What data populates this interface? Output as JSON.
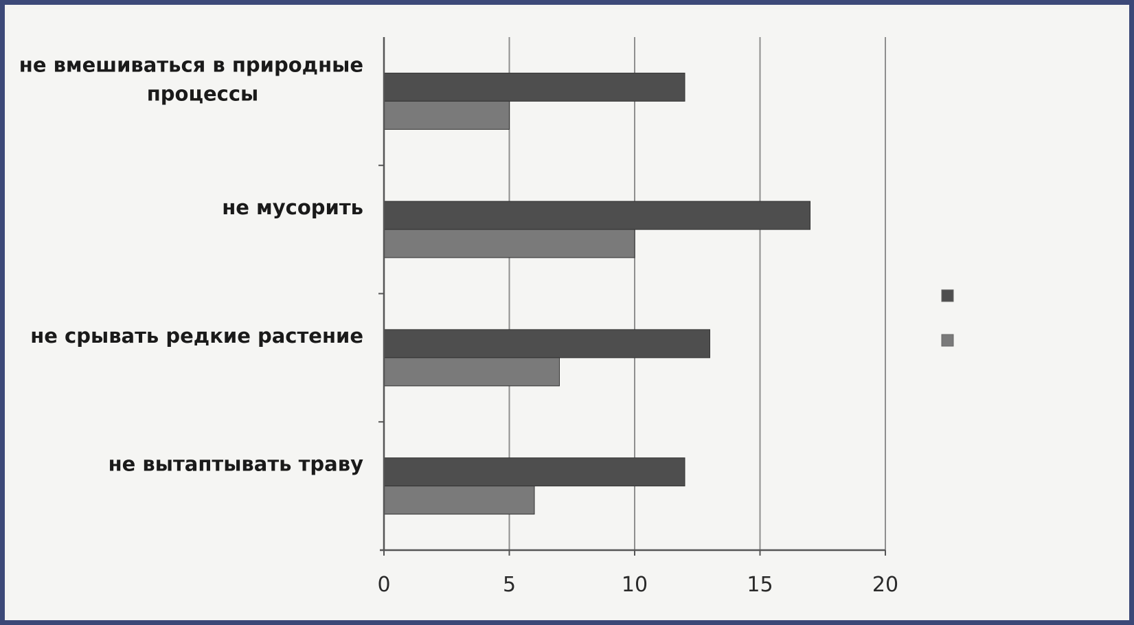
{
  "chart_data": {
    "type": "bar",
    "orientation": "horizontal",
    "categories": [
      "не вмешиваться в природные процессы",
      "не мусорить",
      "не срывать редкие растение",
      "не вытаптывать траву"
    ],
    "category_lines": [
      [
        "не вмешиваться в природные",
        "процессы"
      ],
      [
        "не мусорить"
      ],
      [
        "не срывать редкие растение"
      ],
      [
        "не вытаптывать траву"
      ]
    ],
    "series": [
      {
        "values": [
          12,
          17,
          13,
          12
        ],
        "color": "#4e4e4e"
      },
      {
        "values": [
          5,
          10,
          7,
          6
        ],
        "color": "#7a7a7a"
      }
    ],
    "xlim": [
      0,
      20
    ],
    "xticks": [
      "0",
      "5",
      "10",
      "15",
      "20"
    ],
    "grid": true,
    "legend_position": "right",
    "title": "",
    "xlabel": "",
    "ylabel": ""
  }
}
